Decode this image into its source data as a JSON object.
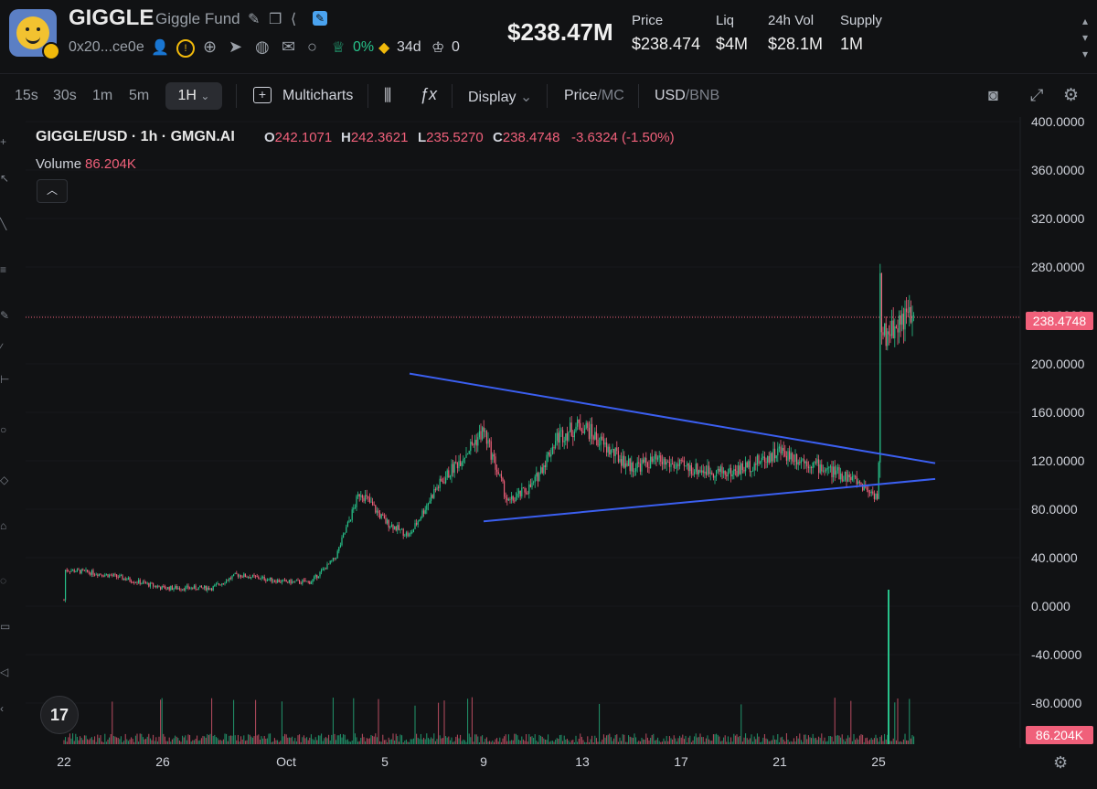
{
  "token": {
    "symbol": "GIGGLE",
    "name": "Giggle Fund",
    "address": "0x20...ce0e",
    "holders_change": "0%",
    "age": "34d",
    "crowns": "0"
  },
  "stats": {
    "market_cap": "$238.47M",
    "items": [
      {
        "label": "Price",
        "value": "$238.474"
      },
      {
        "label": "Liq",
        "value": "$4M"
      },
      {
        "label": "24h Vol",
        "value": "$28.1M"
      },
      {
        "label": "Supply",
        "value": "1M"
      }
    ]
  },
  "toolbar": {
    "timeframes": [
      "15s",
      "30s",
      "1m",
      "5m"
    ],
    "active_timeframe": "1H",
    "multicharts": "Multicharts",
    "display": "Display",
    "price_label": "Price",
    "mc_label": "MC",
    "usd_label": "USD",
    "bnb_label": "BNB"
  },
  "legend": {
    "title": "GIGGLE/USD · 1h · GMGN.AI",
    "o_label": "O",
    "o_value": "242.1071",
    "h_label": "H",
    "h_value": "242.3621",
    "l_label": "L",
    "l_value": "235.5270",
    "c_label": "C",
    "c_value": "238.4748",
    "change": "-3.6324 (-1.50%)",
    "volume_label": "Volume",
    "volume_value": "86.204K"
  },
  "colors": {
    "up": "#27c28a",
    "down": "#f0607a",
    "trendline": "#3b5ff0",
    "background": "#111214"
  },
  "chart_data": {
    "type": "candlestick",
    "y_ticks": [
      "400.0000",
      "360.0000",
      "320.0000",
      "280.0000",
      "240.0000",
      "200.0000",
      "160.0000",
      "120.0000",
      "80.0000",
      "40.0000",
      "0.0000",
      "-40.0000",
      "-80.0000"
    ],
    "ylim": [
      -80,
      400
    ],
    "last_price_label": "238.4748",
    "last_volume_label": "86.204K",
    "x_ticks": [
      "22",
      "26",
      "Oct",
      "5",
      "9",
      "13",
      "17",
      "21",
      "25"
    ],
    "approx_close_path": [
      {
        "date": "Sep 22",
        "close": 5
      },
      {
        "date": "Sep 22",
        "close": 30
      },
      {
        "date": "Sep 23",
        "close": 28
      },
      {
        "date": "Sep 24",
        "close": 25
      },
      {
        "date": "Sep 26",
        "close": 15
      },
      {
        "date": "Sep 28",
        "close": 15
      },
      {
        "date": "Sep 29",
        "close": 26
      },
      {
        "date": "Oct 1",
        "close": 20
      },
      {
        "date": "Oct 2",
        "close": 20
      },
      {
        "date": "Oct 3",
        "close": 40
      },
      {
        "date": "Oct 4",
        "close": 95
      },
      {
        "date": "Oct 5",
        "close": 70
      },
      {
        "date": "Oct 6",
        "close": 58
      },
      {
        "date": "Oct 7",
        "close": 95
      },
      {
        "date": "Oct 8",
        "close": 120
      },
      {
        "date": "Oct 9",
        "close": 145
      },
      {
        "date": "Oct 10",
        "close": 85
      },
      {
        "date": "Oct 11",
        "close": 100
      },
      {
        "date": "Oct 12",
        "close": 140
      },
      {
        "date": "Oct 13",
        "close": 150
      },
      {
        "date": "Oct 14",
        "close": 130
      },
      {
        "date": "Oct 15",
        "close": 115
      },
      {
        "date": "Oct 16",
        "close": 120
      },
      {
        "date": "Oct 17",
        "close": 115
      },
      {
        "date": "Oct 18",
        "close": 112
      },
      {
        "date": "Oct 19",
        "close": 110
      },
      {
        "date": "Oct 20",
        "close": 118
      },
      {
        "date": "Oct 21",
        "close": 128
      },
      {
        "date": "Oct 22",
        "close": 120
      },
      {
        "date": "Oct 23",
        "close": 112
      },
      {
        "date": "Oct 24",
        "close": 105
      },
      {
        "date": "Oct 25",
        "close": 90
      },
      {
        "date": "Oct 25",
        "close": 280
      },
      {
        "date": "Oct 25",
        "close": 220
      },
      {
        "date": "Oct 26",
        "close": 238.47
      }
    ],
    "trendlines": [
      {
        "name": "upper",
        "from": {
          "date": "Oct 6",
          "price": 192
        },
        "to": {
          "date": "Oct 27",
          "price": 118
        }
      },
      {
        "name": "lower",
        "from": {
          "date": "Oct 9",
          "price": 70
        },
        "to": {
          "date": "Oct 27",
          "price": 105
        }
      }
    ]
  }
}
